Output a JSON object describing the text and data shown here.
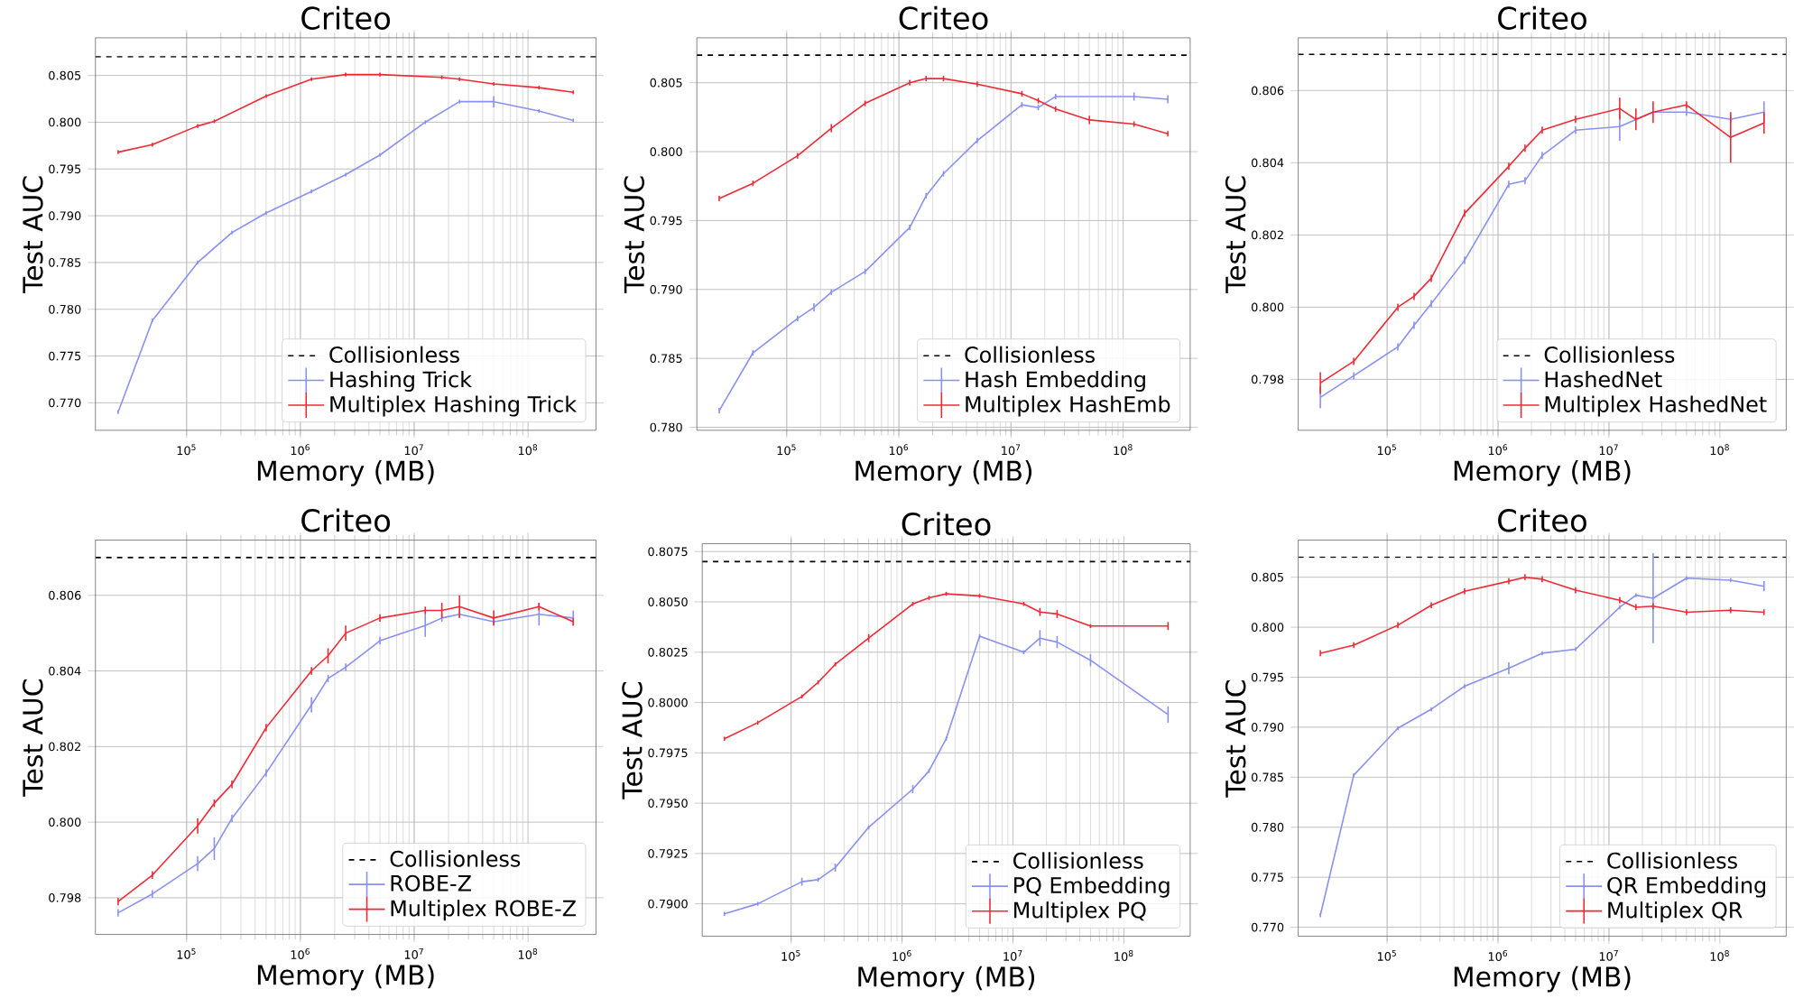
{
  "chart_data": [
    {
      "type": "line",
      "title": "Criteo",
      "xlabel": "Memory (MB)",
      "ylabel": "Test AUC",
      "log": "x",
      "grid": true,
      "legend": "bottom right",
      "xlim": [
        15800,
        396000000
      ],
      "xticks": [
        {
          "value": 100000,
          "label": "10$^{5}$"
        },
        {
          "value": 1000000,
          "label": "10$^{6}$"
        },
        {
          "value": 10000000,
          "label": "10$^{7}$"
        },
        {
          "value": 100000000,
          "label": "10$^{8}$"
        }
      ],
      "ylim": [
        0.76706,
        0.80903
      ],
      "yticks": [
        {
          "value": 0.77,
          "label": "0.770"
        },
        {
          "value": 0.775,
          "label": "0.775"
        },
        {
          "value": 0.78,
          "label": "0.780"
        },
        {
          "value": 0.785,
          "label": "0.785"
        },
        {
          "value": 0.79,
          "label": "0.790"
        },
        {
          "value": 0.795,
          "label": "0.795"
        },
        {
          "value": 0.8,
          "label": "0.800"
        },
        {
          "value": 0.805,
          "label": "0.805"
        }
      ],
      "ref_lines": [
        {
          "axis": "y",
          "value": 0.807,
          "label": "Collisionless",
          "color": "#000000",
          "line_style": "dashed"
        }
      ],
      "series": [
        {
          "name": "Hashing Trick",
          "color": "#8891f0",
          "x": [
            25000,
            50000,
            125000,
            250000,
            500000,
            1250000,
            2500000,
            5000000,
            12500000,
            25000000,
            50000000,
            125000000,
            250000000
          ],
          "values": [
            0.769,
            0.7788,
            0.785,
            0.7882,
            0.7903,
            0.7926,
            0.7944,
            0.7965,
            0.8,
            0.8022,
            0.8022,
            0.8012,
            0.8002
          ],
          "errors": [
            0.0002,
            0.0002,
            0.0002,
            0.0002,
            0.0002,
            0.0002,
            0.0002,
            0.0002,
            0.0002,
            0.0002,
            0.0006,
            0.0002,
            0.0002
          ]
        },
        {
          "name": "Multiplex Hashing Trick",
          "color": "#ee2a35",
          "x": [
            25000,
            50000,
            125000,
            175000,
            500000,
            1250000,
            2500000,
            5000000,
            17500000,
            25000000,
            50000000,
            125000000,
            250000000
          ],
          "values": [
            0.7968,
            0.7976,
            0.7996,
            0.8001,
            0.8028,
            0.8046,
            0.8051,
            0.8051,
            0.8048,
            0.8046,
            0.8041,
            0.8037,
            0.8032
          ],
          "errors": [
            0.0002,
            0.0002,
            0.0002,
            0.0002,
            0.0002,
            0.0002,
            0.0002,
            0.0002,
            0.0002,
            0.0002,
            0.0002,
            0.0002,
            0.0002
          ]
        }
      ]
    },
    {
      "type": "line",
      "title": "Criteo",
      "xlabel": "Memory (MB)",
      "ylabel": "Test AUC",
      "log": "x",
      "grid": true,
      "legend": "bottom right",
      "xlim": [
        15800,
        396000000
      ],
      "xticks": [
        {
          "value": 100000,
          "label": "10$^{5}$"
        },
        {
          "value": 1000000,
          "label": "10$^{6}$"
        },
        {
          "value": 10000000,
          "label": "10$^{7}$"
        },
        {
          "value": 100000000,
          "label": "10$^{8}$"
        }
      ],
      "ylim": [
        0.77978,
        0.80826
      ],
      "yticks": [
        {
          "value": 0.78,
          "label": "0.780"
        },
        {
          "value": 0.785,
          "label": "0.785"
        },
        {
          "value": 0.79,
          "label": "0.790"
        },
        {
          "value": 0.795,
          "label": "0.795"
        },
        {
          "value": 0.8,
          "label": "0.800"
        },
        {
          "value": 0.805,
          "label": "0.805"
        }
      ],
      "ref_lines": [
        {
          "axis": "y",
          "value": 0.807,
          "label": "Collisionless",
          "color": "#000000",
          "line_style": "dashed"
        }
      ],
      "series": [
        {
          "name": "Hash Embedding",
          "color": "#8891f0",
          "x": [
            25000,
            50000,
            125000,
            175000,
            250000,
            500000,
            1250000,
            1750000,
            2500000,
            5000000,
            12500000,
            17500000,
            25000000,
            125000000,
            250000000
          ],
          "values": [
            0.7812,
            0.7854,
            0.7879,
            0.7887,
            0.7898,
            0.7913,
            0.7945,
            0.7968,
            0.7984,
            0.8008,
            0.8034,
            0.8032,
            0.804,
            0.804,
            0.8038
          ],
          "errors": [
            0.0002,
            0.0002,
            0.0002,
            0.0003,
            0.0002,
            0.0002,
            0.0002,
            0.0002,
            0.0002,
            0.0002,
            0.0002,
            0.0002,
            0.0002,
            0.0003,
            0.0003
          ]
        },
        {
          "name": "Multiplex HashEmb",
          "color": "#ee2a35",
          "x": [
            25000,
            50000,
            125000,
            250000,
            500000,
            1250000,
            1750000,
            2500000,
            5000000,
            12500000,
            17500000,
            25000000,
            50000000,
            125000000,
            250000000
          ],
          "values": [
            0.7966,
            0.7977,
            0.7997,
            0.8017,
            0.8035,
            0.805,
            0.8053,
            0.8053,
            0.8049,
            0.8042,
            0.8037,
            0.8031,
            0.8023,
            0.802,
            0.8013
          ],
          "errors": [
            0.0002,
            0.0002,
            0.0002,
            0.0003,
            0.0002,
            0.0002,
            0.0002,
            0.0002,
            0.0002,
            0.0002,
            0.0002,
            0.0002,
            0.0003,
            0.0002,
            0.0002
          ]
        }
      ]
    },
    {
      "type": "line",
      "title": "Criteo",
      "xlabel": "Memory (MB)",
      "ylabel": "Test AUC",
      "log": "x",
      "grid": true,
      "legend": "bottom right",
      "xlim": [
        15800,
        396000000
      ],
      "xticks": [
        {
          "value": 100000,
          "label": "10$^{5}$"
        },
        {
          "value": 1000000,
          "label": "10$^{6}$"
        },
        {
          "value": 10000000,
          "label": "10$^{7}$"
        },
        {
          "value": 100000000,
          "label": "10$^{8}$"
        }
      ],
      "ylim": [
        0.79659,
        0.80746
      ],
      "yticks": [
        {
          "value": 0.798,
          "label": "0.798"
        },
        {
          "value": 0.8,
          "label": "0.800"
        },
        {
          "value": 0.802,
          "label": "0.802"
        },
        {
          "value": 0.804,
          "label": "0.804"
        },
        {
          "value": 0.806,
          "label": "0.806"
        }
      ],
      "ref_lines": [
        {
          "axis": "y",
          "value": 0.807,
          "label": "Collisionless",
          "color": "#000000",
          "line_style": "dashed"
        }
      ],
      "series": [
        {
          "name": "HashedNet",
          "color": "#8891f0",
          "x": [
            25000,
            50000,
            125000,
            175000,
            250000,
            500000,
            1250000,
            1750000,
            2500000,
            5000000,
            12500000,
            25000000,
            50000000,
            125000000,
            250000000
          ],
          "values": [
            0.7975,
            0.7981,
            0.7989,
            0.7995,
            0.8001,
            0.8013,
            0.8034,
            0.8035,
            0.8042,
            0.8049,
            0.805,
            0.8054,
            0.8054,
            0.8052,
            0.8054
          ],
          "errors": [
            0.0003,
            0.0001,
            0.0001,
            0.0001,
            0.0001,
            0.0001,
            0.0001,
            0.0001,
            0.0001,
            0.0001,
            0.0004,
            null,
            0.0001,
            0.0001,
            0.0003
          ]
        },
        {
          "name": "Multiplex HashedNet",
          "color": "#ee2a35",
          "x": [
            25000,
            50000,
            125000,
            175000,
            250000,
            500000,
            1250000,
            1750000,
            2500000,
            5000000,
            12500000,
            17500000,
            25000000,
            50000000,
            125000000,
            250000000
          ],
          "values": [
            0.7979,
            0.7985,
            0.8,
            0.8003,
            0.8008,
            0.8026,
            0.8039,
            0.8044,
            0.8049,
            0.8052,
            0.8055,
            0.8052,
            0.8054,
            0.8056,
            0.8047,
            0.8051
          ],
          "errors": [
            0.0003,
            0.0001,
            0.0001,
            0.0001,
            0.0001,
            0.0001,
            0.0001,
            0.0001,
            0.0001,
            0.0001,
            0.0003,
            0.0003,
            0.0003,
            0.0001,
            0.0007,
            0.0003
          ]
        }
      ]
    },
    {
      "type": "line",
      "title": "Criteo",
      "xlabel": "Memory (MB)",
      "ylabel": "Test AUC",
      "log": "x",
      "grid": true,
      "legend": "bottom right",
      "xlim": [
        15800,
        396000000
      ],
      "xticks": [
        {
          "value": 100000,
          "label": "10$^{5}$"
        },
        {
          "value": 1000000,
          "label": "10$^{6}$"
        },
        {
          "value": 10000000,
          "label": "10$^{7}$"
        },
        {
          "value": 100000000,
          "label": "10$^{8}$"
        }
      ],
      "ylim": [
        0.79703,
        0.80746
      ],
      "yticks": [
        {
          "value": 0.798,
          "label": "0.798"
        },
        {
          "value": 0.8,
          "label": "0.800"
        },
        {
          "value": 0.802,
          "label": "0.802"
        },
        {
          "value": 0.804,
          "label": "0.804"
        },
        {
          "value": 0.806,
          "label": "0.806"
        }
      ],
      "ref_lines": [
        {
          "axis": "y",
          "value": 0.807,
          "label": "Collisionless",
          "color": "#000000",
          "line_style": "dashed"
        }
      ],
      "series": [
        {
          "name": "ROBE-Z",
          "color": "#8891f0",
          "x": [
            25000,
            50000,
            125000,
            175000,
            250000,
            500000,
            1250000,
            1750000,
            2500000,
            5000000,
            12500000,
            17500000,
            25000000,
            50000000,
            125000000,
            250000000
          ],
          "values": [
            0.7976,
            0.7981,
            0.7989,
            0.7993,
            0.8001,
            0.8013,
            0.8031,
            0.8038,
            0.8041,
            0.8048,
            0.8052,
            0.8054,
            0.8055,
            0.8053,
            0.8055,
            0.8054
          ],
          "errors": [
            0.0001,
            0.0001,
            0.0002,
            0.0003,
            0.0001,
            0.0001,
            0.0002,
            0.0001,
            0.0001,
            0.0001,
            0.0003,
            0.0001,
            0.0001,
            0.0001,
            0.0003,
            0.0002
          ]
        },
        {
          "name": "Multiplex ROBE-Z",
          "color": "#ee2a35",
          "x": [
            25000,
            50000,
            125000,
            175000,
            250000,
            500000,
            1250000,
            1750000,
            2500000,
            5000000,
            12500000,
            17500000,
            25000000,
            50000000,
            125000000,
            250000000
          ],
          "values": [
            0.7979,
            0.7986,
            0.7999,
            0.8005,
            0.801,
            0.8025,
            0.804,
            0.8044,
            0.805,
            0.8054,
            0.8056,
            0.8056,
            0.8057,
            0.8054,
            0.8057,
            0.8053
          ],
          "errors": [
            0.0001,
            0.0001,
            0.0002,
            0.0001,
            0.0001,
            0.0001,
            0.0001,
            0.0002,
            0.0002,
            0.0001,
            0.0001,
            0.0002,
            0.0003,
            0.0002,
            0.0001,
            0.0001
          ]
        }
      ]
    },
    {
      "type": "line",
      "title": "Criteo",
      "xlabel": "Memory (MB)",
      "ylabel": "Test AUC",
      "log": "x",
      "grid": true,
      "legend": "bottom right",
      "xlim": [
        15800,
        396000000
      ],
      "xticks": [
        {
          "value": 100000,
          "label": "10$^{5}$"
        },
        {
          "value": 1000000,
          "label": "10$^{6}$"
        },
        {
          "value": 10000000,
          "label": "10$^{7}$"
        },
        {
          "value": 100000000,
          "label": "10$^{8}$"
        }
      ],
      "ylim": [
        0.78839,
        0.80789
      ],
      "yticks": [
        {
          "value": 0.79,
          "label": "0.7900"
        },
        {
          "value": 0.7925,
          "label": "0.7925"
        },
        {
          "value": 0.795,
          "label": "0.7950"
        },
        {
          "value": 0.7975,
          "label": "0.7975"
        },
        {
          "value": 0.8,
          "label": "0.8000"
        },
        {
          "value": 0.8025,
          "label": "0.8025"
        },
        {
          "value": 0.805,
          "label": "0.8050"
        },
        {
          "value": 0.8075,
          "label": "0.8075"
        }
      ],
      "ref_lines": [
        {
          "axis": "y",
          "value": 0.807,
          "label": "Collisionless",
          "color": "#000000",
          "line_style": "dashed"
        }
      ],
      "series": [
        {
          "name": "PQ Embedding",
          "color": "#8891f0",
          "x": [
            25000,
            50000,
            125000,
            175000,
            250000,
            500000,
            1250000,
            1750000,
            2500000,
            5000000,
            12500000,
            17500000,
            25000000,
            50000000,
            250000000
          ],
          "values": [
            0.7895,
            0.79,
            0.7911,
            0.7912,
            0.7918,
            0.7938,
            0.7957,
            0.7966,
            0.7982,
            0.8033,
            0.8025,
            0.8032,
            0.803,
            0.8021,
            0.7994
          ],
          "errors": [
            0.0001,
            0.0001,
            0.0002,
            0.0001,
            0.0002,
            0.0001,
            0.0002,
            0.0001,
            0.0001,
            0.0001,
            0.0001,
            0.0004,
            0.0003,
            0.0003,
            0.0004
          ]
        },
        {
          "name": "Multiplex PQ",
          "color": "#ee2a35",
          "x": [
            25000,
            50000,
            125000,
            175000,
            250000,
            500000,
            1250000,
            1750000,
            2500000,
            5000000,
            12500000,
            17500000,
            25000000,
            50000000,
            250000000
          ],
          "values": [
            0.7982,
            0.799,
            0.8003,
            0.801,
            0.8019,
            0.8032,
            0.8049,
            0.8052,
            0.8054,
            0.8053,
            0.8049,
            0.8045,
            0.8044,
            0.8038,
            0.8038
          ],
          "errors": [
            0.0001,
            0.0001,
            0.0001,
            0.0001,
            0.0001,
            0.0002,
            0.0001,
            0.0001,
            0.0001,
            0.0001,
            0.0001,
            0.0002,
            0.0002,
            0.0001,
            0.0002
          ]
        }
      ]
    },
    {
      "type": "line",
      "title": "Criteo",
      "xlabel": "Memory (MB)",
      "ylabel": "Test AUC",
      "log": "x",
      "grid": true,
      "legend": "bottom right",
      "xlim": [
        15800,
        396000000
      ],
      "xticks": [
        {
          "value": 100000,
          "label": "10$^{5}$"
        },
        {
          "value": 1000000,
          "label": "10$^{6}$"
        },
        {
          "value": 10000000,
          "label": "10$^{7}$"
        },
        {
          "value": 100000000,
          "label": "10$^{8}$"
        }
      ],
      "ylim": [
        0.7691,
        0.80871
      ],
      "yticks": [
        {
          "value": 0.77,
          "label": "0.770"
        },
        {
          "value": 0.775,
          "label": "0.775"
        },
        {
          "value": 0.78,
          "label": "0.780"
        },
        {
          "value": 0.785,
          "label": "0.785"
        },
        {
          "value": 0.79,
          "label": "0.790"
        },
        {
          "value": 0.795,
          "label": "0.795"
        },
        {
          "value": 0.8,
          "label": "0.800"
        },
        {
          "value": 0.805,
          "label": "0.805"
        }
      ],
      "ref_lines": [
        {
          "axis": "y",
          "value": 0.807,
          "label": "Collisionless",
          "color": "#000000",
          "line_style": "dashed"
        }
      ],
      "series": [
        {
          "name": "QR Embedding",
          "color": "#8891f0",
          "x": [
            25000,
            50000,
            125000,
            250000,
            500000,
            1250000,
            2500000,
            5000000,
            12500000,
            17500000,
            25000000,
            50000000,
            125000000,
            250000000
          ],
          "values": [
            0.7712,
            0.7852,
            0.7899,
            0.7918,
            0.7941,
            0.7959,
            0.7974,
            0.7978,
            0.802,
            0.8032,
            0.8029,
            0.8049,
            0.8047,
            0.8041
          ],
          "errors": [
            0.0002,
            0.0002,
            0.0002,
            0.0002,
            0.0002,
            0.0006,
            0.0002,
            0.0002,
            0.0002,
            0.0002,
            0.0045,
            0.0002,
            0.0002,
            0.0005
          ]
        },
        {
          "name": "Multiplex QR",
          "color": "#ee2a35",
          "x": [
            25000,
            50000,
            125000,
            250000,
            500000,
            1250000,
            1750000,
            2500000,
            5000000,
            12500000,
            17500000,
            25000000,
            50000000,
            125000000,
            250000000
          ],
          "values": [
            0.7974,
            0.7982,
            0.8002,
            0.8022,
            0.8036,
            0.8046,
            0.805,
            0.8048,
            0.8037,
            0.8027,
            0.802,
            0.8021,
            0.8015,
            0.8017,
            0.8015
          ],
          "errors": [
            0.0003,
            0.0003,
            0.0003,
            0.0003,
            0.0003,
            0.0003,
            0.0003,
            0.0003,
            0.0003,
            0.0003,
            0.0003,
            0.0003,
            0.0003,
            0.0003,
            0.0003
          ]
        }
      ]
    }
  ]
}
